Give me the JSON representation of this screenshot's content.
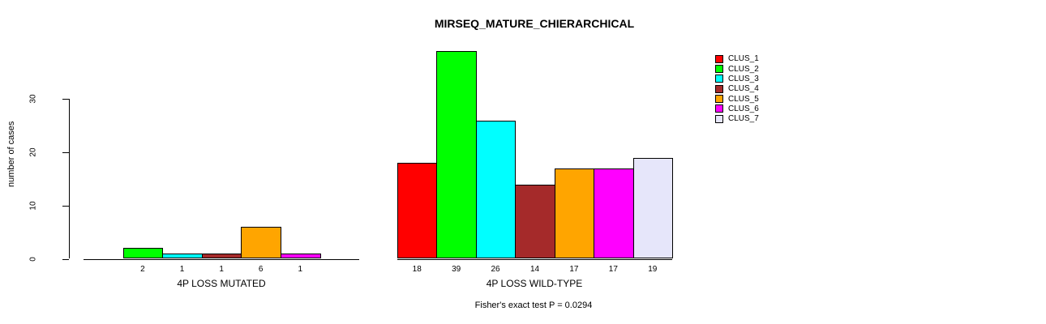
{
  "chart_data": {
    "type": "bar",
    "title": "MIRSEQ_MATURE_CHIERARCHICAL",
    "ylabel": "number of cases",
    "xlabel": "",
    "yticks": [
      0,
      10,
      20,
      30
    ],
    "ylim": [
      0,
      39
    ],
    "grid": false,
    "bar_borders_color": "#000000",
    "legend_position": "right",
    "categories": [
      "4P LOSS MUTATED",
      "4P LOSS WILD-TYPE"
    ],
    "series": [
      {
        "name": "CLUS_1",
        "color": "#FF0000",
        "values": [
          0,
          18
        ]
      },
      {
        "name": "CLUS_2",
        "color": "#00FF00",
        "values": [
          2,
          39
        ]
      },
      {
        "name": "CLUS_3",
        "color": "#00FFFF",
        "values": [
          1,
          26
        ]
      },
      {
        "name": "CLUS_4",
        "color": "#A52A2A",
        "values": [
          1,
          14
        ]
      },
      {
        "name": "CLUS_5",
        "color": "#FFA500",
        "values": [
          6,
          17
        ]
      },
      {
        "name": "CLUS_6",
        "color": "#FF00FF",
        "values": [
          1,
          17
        ]
      },
      {
        "name": "CLUS_7",
        "color": "#E6E6FA",
        "values": [
          0,
          19
        ]
      }
    ],
    "bar_value_labels_shown_for_nonzero_only": true,
    "annotation": "Fisher's exact test P = 0.0294"
  }
}
